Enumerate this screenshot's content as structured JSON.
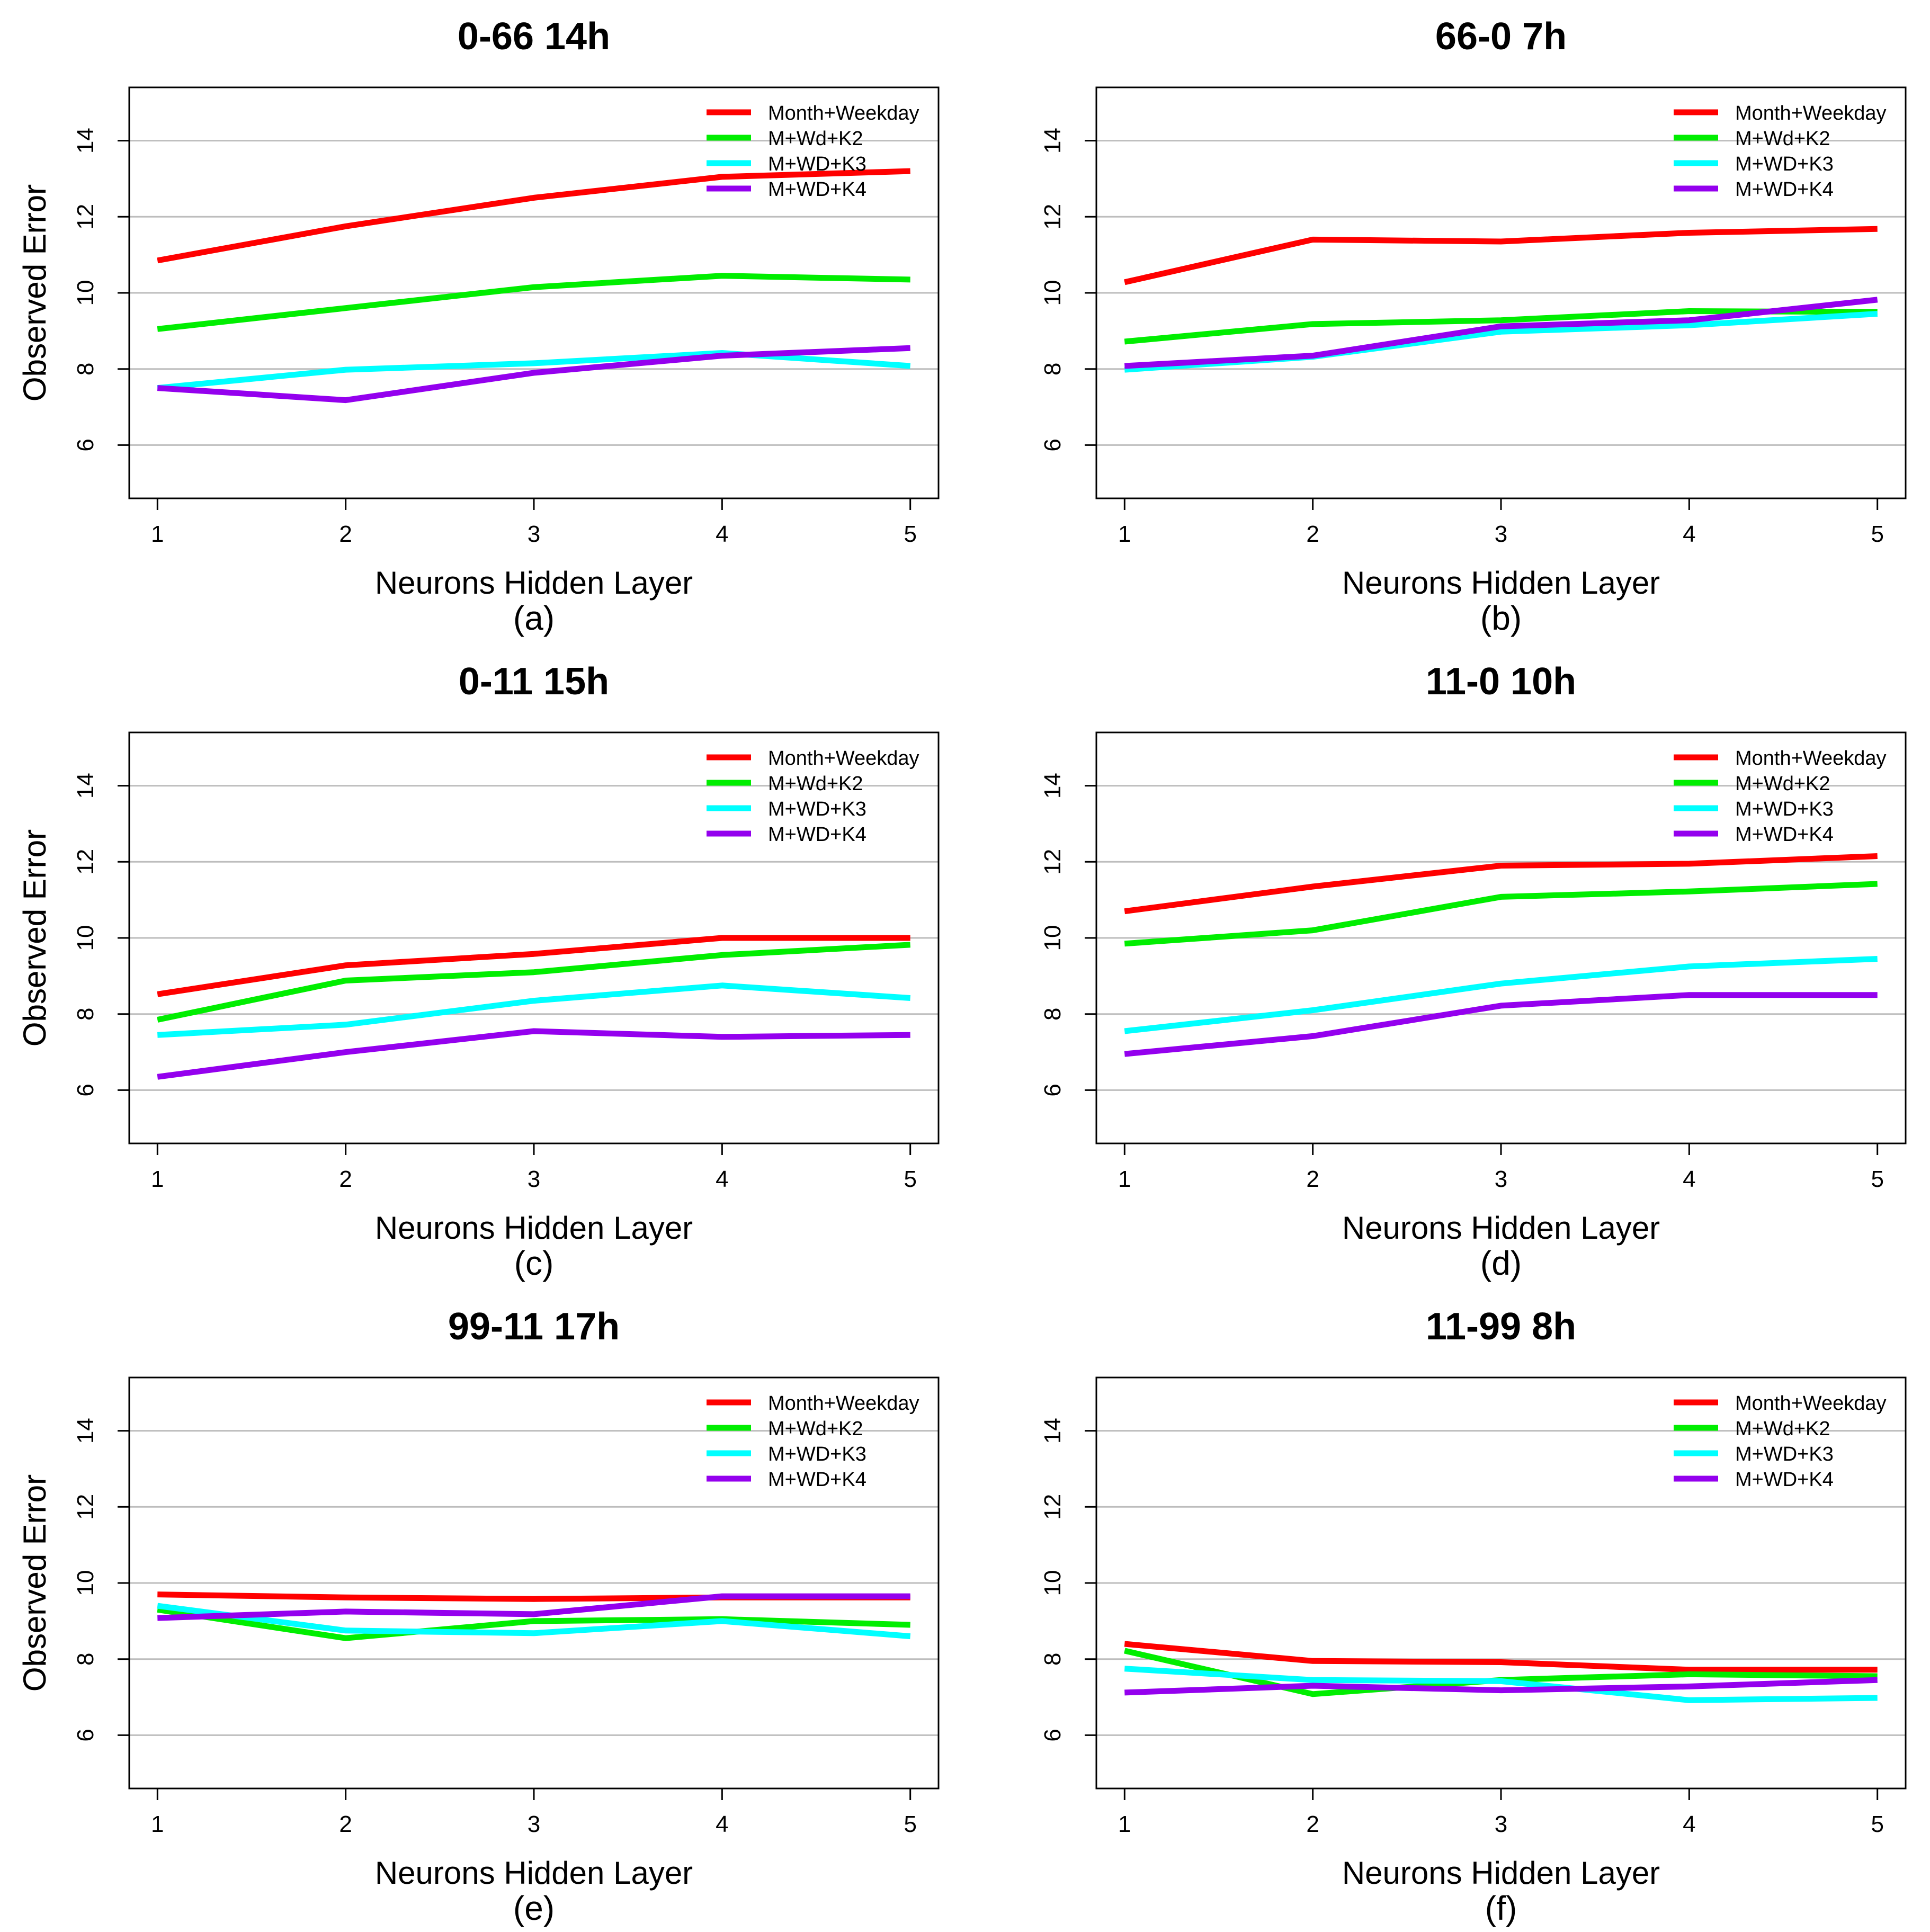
{
  "chart_data": [
    {
      "type": "line",
      "panel_label": "(a)",
      "title": "0-66 14h",
      "xlabel": "Neurons Hidden Layer",
      "ylabel": "Observed Error",
      "x": [
        1,
        2,
        3,
        4,
        5
      ],
      "xlim": [
        0.85,
        5.15
      ],
      "ylim": [
        4.6,
        15.4
      ],
      "yticks": [
        6,
        8,
        10,
        12,
        14
      ],
      "grid": "horizontal",
      "legend_position": "top-right",
      "series": [
        {
          "name": "Month+Weekday",
          "color": "#ff0000",
          "values": [
            10.85,
            11.75,
            12.5,
            13.05,
            13.2
          ]
        },
        {
          "name": "M+Wd+K2",
          "color": "#00ee00",
          "values": [
            9.05,
            9.6,
            10.15,
            10.45,
            10.35
          ]
        },
        {
          "name": "M+WD+K3",
          "color": "#00ffff",
          "values": [
            7.5,
            7.98,
            8.15,
            8.42,
            8.08
          ]
        },
        {
          "name": "M+WD+K4",
          "color": "#9400ee",
          "values": [
            7.5,
            7.18,
            7.9,
            8.35,
            8.55
          ]
        }
      ]
    },
    {
      "type": "line",
      "panel_label": "(b)",
      "title": "66-0 7h",
      "xlabel": "Neurons Hidden Layer",
      "ylabel": "Observed Error",
      "x": [
        1,
        2,
        3,
        4,
        5
      ],
      "xlim": [
        0.85,
        5.15
      ],
      "ylim": [
        4.6,
        15.4
      ],
      "yticks": [
        6,
        8,
        10,
        12,
        14
      ],
      "grid": "horizontal",
      "legend_position": "top-right",
      "series": [
        {
          "name": "Month+Weekday",
          "color": "#ff0000",
          "values": [
            10.28,
            11.4,
            11.35,
            11.58,
            11.68
          ]
        },
        {
          "name": "M+Wd+K2",
          "color": "#00ee00",
          "values": [
            8.72,
            9.18,
            9.28,
            9.52,
            9.5
          ]
        },
        {
          "name": "M+WD+K3",
          "color": "#00ffff",
          "values": [
            7.98,
            8.32,
            8.98,
            9.15,
            9.45
          ]
        },
        {
          "name": "M+WD+K4",
          "color": "#9400ee",
          "values": [
            8.08,
            8.35,
            9.12,
            9.28,
            9.82
          ]
        }
      ]
    },
    {
      "type": "line",
      "panel_label": "(c)",
      "title": "0-11 15h",
      "xlabel": "Neurons Hidden Layer",
      "ylabel": "Observed Error",
      "x": [
        1,
        2,
        3,
        4,
        5
      ],
      "xlim": [
        0.85,
        5.15
      ],
      "ylim": [
        4.6,
        15.4
      ],
      "yticks": [
        6,
        8,
        10,
        12,
        14
      ],
      "grid": "horizontal",
      "legend_position": "top-right",
      "series": [
        {
          "name": "Month+Weekday",
          "color": "#ff0000",
          "values": [
            8.52,
            9.28,
            9.58,
            10.0,
            10.0
          ]
        },
        {
          "name": "M+Wd+K2",
          "color": "#00ee00",
          "values": [
            7.85,
            8.88,
            9.1,
            9.55,
            9.82
          ]
        },
        {
          "name": "M+WD+K3",
          "color": "#00ffff",
          "values": [
            7.45,
            7.72,
            8.35,
            8.75,
            8.42
          ]
        },
        {
          "name": "M+WD+K4",
          "color": "#9400ee",
          "values": [
            6.35,
            7.0,
            7.55,
            7.4,
            7.45
          ]
        }
      ]
    },
    {
      "type": "line",
      "panel_label": "(d)",
      "title": "11-0 10h",
      "xlabel": "Neurons Hidden Layer",
      "ylabel": "Observed Error",
      "x": [
        1,
        2,
        3,
        4,
        5
      ],
      "xlim": [
        0.85,
        5.15
      ],
      "ylim": [
        4.6,
        15.4
      ],
      "yticks": [
        6,
        8,
        10,
        12,
        14
      ],
      "grid": "horizontal",
      "legend_position": "top-right",
      "series": [
        {
          "name": "Month+Weekday",
          "color": "#ff0000",
          "values": [
            10.7,
            11.35,
            11.9,
            11.95,
            12.15
          ]
        },
        {
          "name": "M+Wd+K2",
          "color": "#00ee00",
          "values": [
            9.85,
            10.2,
            11.08,
            11.22,
            11.42
          ]
        },
        {
          "name": "M+WD+K3",
          "color": "#00ffff",
          "values": [
            7.55,
            8.1,
            8.8,
            9.25,
            9.45
          ]
        },
        {
          "name": "M+WD+K4",
          "color": "#9400ee",
          "values": [
            6.95,
            7.42,
            8.22,
            8.5,
            8.5
          ]
        }
      ]
    },
    {
      "type": "line",
      "panel_label": "(e)",
      "title": "99-11 17h",
      "xlabel": "Neurons Hidden Layer",
      "ylabel": "Observed Error",
      "x": [
        1,
        2,
        3,
        4,
        5
      ],
      "xlim": [
        0.85,
        5.15
      ],
      "ylim": [
        4.6,
        15.4
      ],
      "yticks": [
        6,
        8,
        10,
        12,
        14
      ],
      "grid": "horizontal",
      "legend_position": "top-right",
      "series": [
        {
          "name": "Month+Weekday",
          "color": "#ff0000",
          "values": [
            9.7,
            9.62,
            9.58,
            9.62,
            9.62
          ]
        },
        {
          "name": "M+Wd+K2",
          "color": "#00ee00",
          "values": [
            9.3,
            8.55,
            9.0,
            9.05,
            8.9
          ]
        },
        {
          "name": "M+WD+K3",
          "color": "#00ffff",
          "values": [
            9.4,
            8.75,
            8.68,
            9.0,
            8.6
          ]
        },
        {
          "name": "M+WD+K4",
          "color": "#9400ee",
          "values": [
            9.08,
            9.25,
            9.18,
            9.65,
            9.65
          ]
        }
      ]
    },
    {
      "type": "line",
      "panel_label": "(f)",
      "title": "11-99 8h",
      "xlabel": "Neurons Hidden Layer",
      "ylabel": "Observed Error",
      "x": [
        1,
        2,
        3,
        4,
        5
      ],
      "xlim": [
        0.85,
        5.15
      ],
      "ylim": [
        4.6,
        15.4
      ],
      "yticks": [
        6,
        8,
        10,
        12,
        14
      ],
      "grid": "horizontal",
      "legend_position": "top-right",
      "series": [
        {
          "name": "Month+Weekday",
          "color": "#ff0000",
          "values": [
            8.4,
            7.95,
            7.92,
            7.72,
            7.72
          ]
        },
        {
          "name": "M+Wd+K2",
          "color": "#00ee00",
          "values": [
            8.22,
            7.08,
            7.45,
            7.6,
            7.55
          ]
        },
        {
          "name": "M+WD+K3",
          "color": "#00ffff",
          "values": [
            7.75,
            7.45,
            7.42,
            6.92,
            6.98
          ]
        },
        {
          "name": "M+WD+K4",
          "color": "#9400ee",
          "values": [
            7.12,
            7.3,
            7.18,
            7.28,
            7.45
          ]
        }
      ]
    }
  ]
}
